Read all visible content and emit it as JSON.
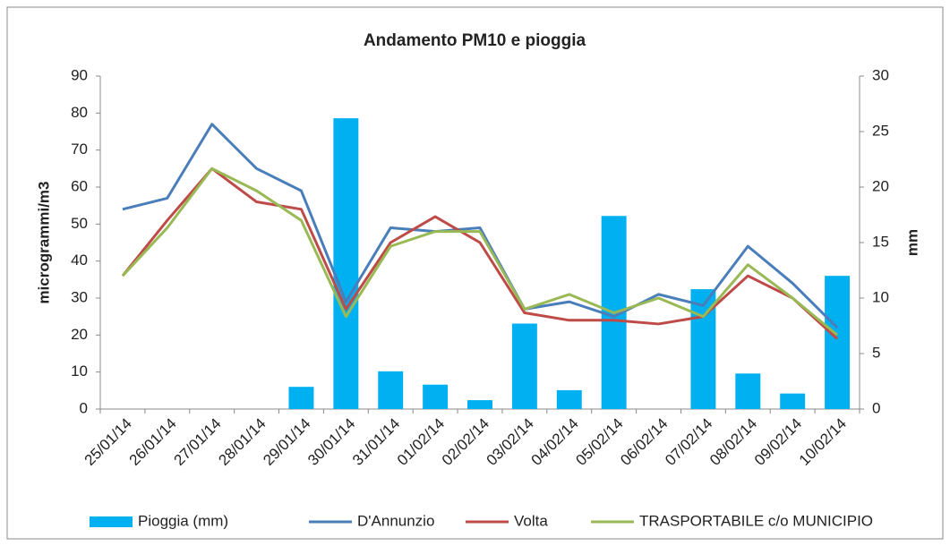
{
  "chart_data": {
    "type": "combo",
    "title": "Andamento PM10 e pioggia",
    "ylabel": "microgrammi/m3",
    "y2label": "mm",
    "categories": [
      "25/01/14",
      "26/01/14",
      "27/01/14",
      "28/01/14",
      "29/01/14",
      "30/01/14",
      "31/01/14",
      "01/02/14",
      "02/02/14",
      "03/02/14",
      "04/02/14",
      "05/02/14",
      "06/02/14",
      "07/02/14",
      "08/02/14",
      "09/02/14",
      "10/02/14"
    ],
    "series": [
      {
        "name": "Pioggia (mm)",
        "type": "bar",
        "axis": "y2",
        "color": "#00b0f0",
        "values": [
          0,
          0,
          0,
          0,
          2,
          26.2,
          3.4,
          2.2,
          0.8,
          7.7,
          1.7,
          17.4,
          0,
          10.8,
          3.2,
          1.4,
          12
        ]
      },
      {
        "name": "D'Annunzio",
        "type": "line",
        "color": "#4a7ebb",
        "values": [
          54,
          57,
          77,
          65,
          59,
          29,
          49,
          48,
          49,
          27,
          29,
          25,
          31,
          28,
          44,
          34,
          22
        ]
      },
      {
        "name": "Volta",
        "type": "line",
        "color": "#be4b48",
        "values": [
          36,
          51,
          65,
          56,
          54,
          27,
          45,
          52,
          45,
          26,
          24,
          24,
          23,
          25,
          36,
          30,
          19
        ]
      },
      {
        "name": "TRASPORTABILE c/o MUNICIPIO",
        "type": "line",
        "color": "#98b954",
        "values": [
          36,
          49,
          65,
          59,
          51,
          25,
          44,
          48,
          48,
          27,
          31,
          26,
          30,
          25,
          39,
          30,
          20
        ]
      }
    ],
    "ylim": [
      0,
      90
    ],
    "yticks": [
      0,
      10,
      20,
      30,
      40,
      50,
      60,
      70,
      80,
      90
    ],
    "y2lim": [
      0,
      30
    ],
    "y2ticks": [
      0,
      5,
      10,
      15,
      20,
      25,
      30
    ],
    "grid": false,
    "legend": "bottom"
  }
}
